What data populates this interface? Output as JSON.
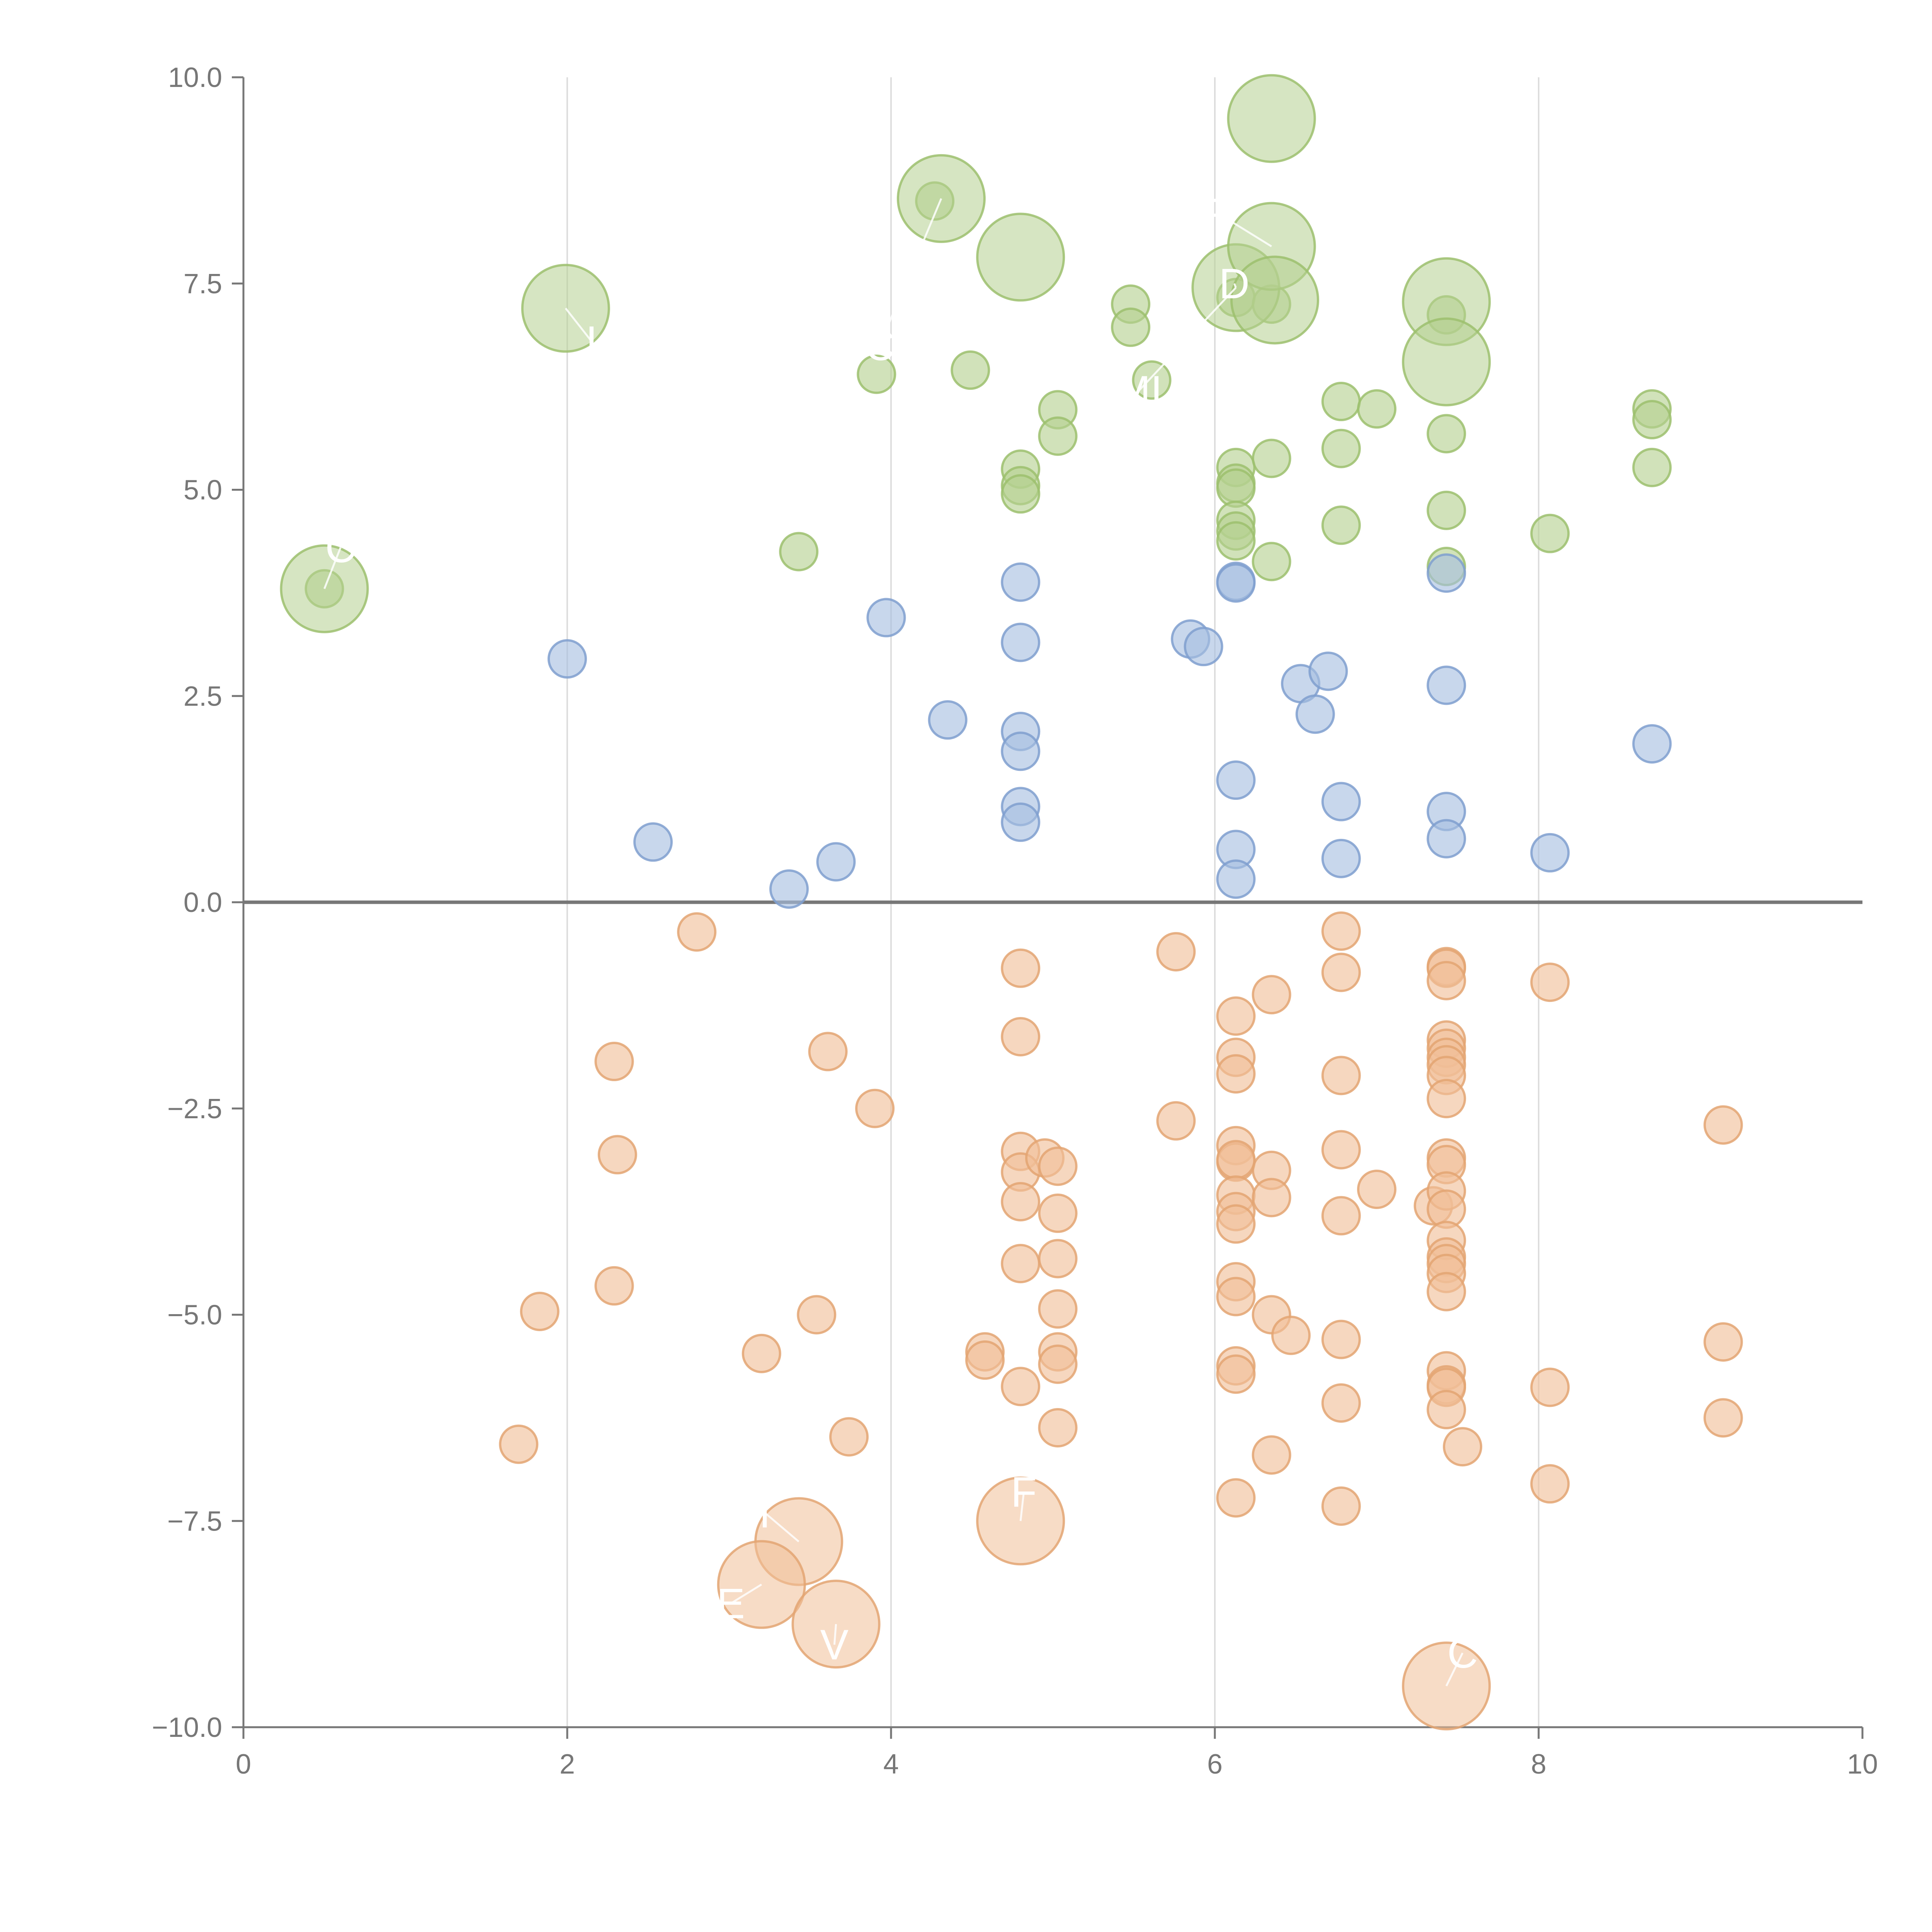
{
  "chart_data": {
    "type": "scatter",
    "title": "",
    "xlabel": "",
    "ylabel": "",
    "xlim": [
      0,
      10
    ],
    "ylim": [
      -10,
      10
    ],
    "x_ticks": [
      0,
      2,
      4,
      6,
      8,
      10
    ],
    "x_tick_labels": [
      "0",
      "2",
      "4",
      "6",
      "8",
      "10"
    ],
    "y_ticks": [
      10,
      7.5,
      5,
      2.5,
      0,
      -2.5,
      -5,
      -7.5,
      -10
    ],
    "y_tick_labels": [
      "10.0",
      "7.5",
      "5.0",
      "2.5",
      "0.0",
      "−2.5",
      "−5.0",
      "−7.5",
      "−10.0"
    ],
    "vertical_grid": true,
    "horizontal_grid": false,
    "zero_line": true,
    "legend": "none",
    "series": [
      {
        "fill": "#b5d08f",
        "stroke": "#9cbf6d",
        "points": [
          [
            0.5,
            3.8
          ],
          [
            3.43,
            4.25
          ],
          [
            3.91,
            6.4
          ],
          [
            4.49,
            6.45
          ],
          [
            4.27,
            8.5
          ],
          [
            4.8,
            5.25
          ],
          [
            4.8,
            5.05
          ],
          [
            4.8,
            4.95
          ],
          [
            5.03,
            5.97
          ],
          [
            5.03,
            5.65
          ],
          [
            5.48,
            7.25
          ],
          [
            5.48,
            6.97
          ],
          [
            5.61,
            6.33
          ],
          [
            6.13,
            7.33
          ],
          [
            6.13,
            5.27
          ],
          [
            6.13,
            5.08
          ],
          [
            6.13,
            5.02
          ],
          [
            6.13,
            4.63
          ],
          [
            6.13,
            4.5
          ],
          [
            6.13,
            4.38
          ],
          [
            6.35,
            5.38
          ],
          [
            6.35,
            4.13
          ],
          [
            6.35,
            7.25
          ],
          [
            6.78,
            6.07
          ],
          [
            6.78,
            5.5
          ],
          [
            6.78,
            4.57
          ],
          [
            7.0,
            5.98
          ],
          [
            7.43,
            7.12
          ],
          [
            7.43,
            5.68
          ],
          [
            7.43,
            4.75
          ],
          [
            7.43,
            4.07
          ],
          [
            8.07,
            4.47
          ],
          [
            8.7,
            5.98
          ],
          [
            8.7,
            5.85
          ],
          [
            8.7,
            5.27
          ]
        ],
        "big_points": [
          [
            0.5,
            3.8
          ],
          [
            1.99,
            7.2
          ],
          [
            4.31,
            8.53
          ],
          [
            4.8,
            7.82
          ],
          [
            6.35,
            9.5
          ],
          [
            6.13,
            7.45
          ],
          [
            6.35,
            7.95
          ],
          [
            6.37,
            7.3
          ],
          [
            7.43,
            7.28
          ],
          [
            7.43,
            6.55
          ]
        ],
        "labels": [
          {
            "text": "C",
            "x": 0.6,
            "y": 4.3
          },
          {
            "text": "I",
            "x": 2.15,
            "y": 6.8
          },
          {
            "text": "C",
            "x": 3.93,
            "y": 6.75
          },
          {
            "text": "MI",
            "x": 5.53,
            "y": 6.2
          },
          {
            "text": "P",
            "x": 6.02,
            "y": 8.35
          },
          {
            "text": "D",
            "x": 6.12,
            "y": 7.5
          }
        ]
      },
      {
        "fill": "#a7bfe1",
        "stroke": "#7f9fcf",
        "points": [
          [
            2.0,
            2.95
          ],
          [
            2.53,
            0.73
          ],
          [
            3.37,
            0.16
          ],
          [
            3.66,
            0.49
          ],
          [
            3.97,
            3.45
          ],
          [
            4.35,
            2.21
          ],
          [
            4.8,
            3.88
          ],
          [
            4.8,
            3.15
          ],
          [
            4.8,
            2.07
          ],
          [
            4.8,
            1.83
          ],
          [
            4.8,
            1.16
          ],
          [
            4.8,
            0.97
          ],
          [
            5.85,
            3.19
          ],
          [
            5.93,
            3.1
          ],
          [
            6.13,
            3.89
          ],
          [
            6.13,
            3.87
          ],
          [
            6.13,
            1.48
          ],
          [
            6.13,
            0.64
          ],
          [
            6.13,
            0.28
          ],
          [
            6.53,
            2.65
          ],
          [
            6.62,
            2.28
          ],
          [
            6.7,
            2.8
          ],
          [
            6.78,
            1.22
          ],
          [
            6.78,
            0.53
          ],
          [
            7.43,
            3.99
          ],
          [
            7.43,
            2.63
          ],
          [
            7.43,
            1.1
          ],
          [
            7.43,
            0.77
          ],
          [
            8.07,
            0.6
          ],
          [
            8.7,
            1.92
          ]
        ],
        "big_points": [],
        "labels": []
      },
      {
        "fill": "#f1bf98",
        "stroke": "#e3a572",
        "points": [
          [
            1.7,
            -6.57
          ],
          [
            1.83,
            -4.96
          ],
          [
            2.29,
            -1.93
          ],
          [
            2.31,
            -3.06
          ],
          [
            2.29,
            -4.65
          ],
          [
            2.8,
            -0.36
          ],
          [
            3.2,
            -5.47
          ],
          [
            3.54,
            -5.0
          ],
          [
            3.61,
            -1.81
          ],
          [
            3.74,
            -6.48
          ],
          [
            3.9,
            -2.5
          ],
          [
            4.58,
            -5.45
          ],
          [
            4.58,
            -5.55
          ],
          [
            4.8,
            -0.8
          ],
          [
            4.8,
            -1.63
          ],
          [
            4.8,
            -3.02
          ],
          [
            4.8,
            -3.27
          ],
          [
            4.8,
            -3.63
          ],
          [
            4.8,
            -4.38
          ],
          [
            4.8,
            -5.87
          ],
          [
            4.95,
            -3.1
          ],
          [
            5.03,
            -3.2
          ],
          [
            5.03,
            -3.77
          ],
          [
            5.03,
            -4.32
          ],
          [
            5.03,
            -4.93
          ],
          [
            5.03,
            -5.45
          ],
          [
            5.03,
            -5.6
          ],
          [
            5.03,
            -6.37
          ],
          [
            5.76,
            -0.6
          ],
          [
            5.76,
            -2.65
          ],
          [
            6.13,
            -1.38
          ],
          [
            6.13,
            -1.88
          ],
          [
            6.13,
            -2.08
          ],
          [
            6.13,
            -2.95
          ],
          [
            6.13,
            -3.15
          ],
          [
            6.13,
            -3.12
          ],
          [
            6.13,
            -3.55
          ],
          [
            6.13,
            -3.75
          ],
          [
            6.13,
            -3.9
          ],
          [
            6.13,
            -4.6
          ],
          [
            6.13,
            -4.78
          ],
          [
            6.13,
            -5.62
          ],
          [
            6.13,
            -5.72
          ],
          [
            6.13,
            -7.22
          ],
          [
            6.35,
            -1.12
          ],
          [
            6.35,
            -3.25
          ],
          [
            6.35,
            -3.58
          ],
          [
            6.35,
            -5.0
          ],
          [
            6.35,
            -6.7
          ],
          [
            6.47,
            -5.25
          ],
          [
            6.78,
            -0.35
          ],
          [
            6.78,
            -0.85
          ],
          [
            6.78,
            -2.1
          ],
          [
            6.78,
            -3.0
          ],
          [
            6.78,
            -3.8
          ],
          [
            6.78,
            -5.3
          ],
          [
            6.78,
            -6.07
          ],
          [
            6.78,
            -7.32
          ],
          [
            7.0,
            -3.48
          ],
          [
            7.35,
            -3.68
          ],
          [
            7.43,
            -0.78
          ],
          [
            7.43,
            -0.8
          ],
          [
            7.43,
            -0.95
          ],
          [
            7.43,
            -1.67
          ],
          [
            7.43,
            -1.77
          ],
          [
            7.43,
            -1.88
          ],
          [
            7.43,
            -1.97
          ],
          [
            7.43,
            -2.1
          ],
          [
            7.43,
            -2.38
          ],
          [
            7.43,
            -3.1
          ],
          [
            7.43,
            -3.18
          ],
          [
            7.43,
            -3.5
          ],
          [
            7.43,
            -3.72
          ],
          [
            7.43,
            -4.1
          ],
          [
            7.43,
            -4.3
          ],
          [
            7.43,
            -4.38
          ],
          [
            7.43,
            -4.5
          ],
          [
            7.43,
            -4.72
          ],
          [
            7.43,
            -5.68
          ],
          [
            7.43,
            -5.85
          ],
          [
            7.43,
            -5.88
          ],
          [
            7.43,
            -6.15
          ],
          [
            7.53,
            -6.6
          ],
          [
            8.07,
            -0.97
          ],
          [
            8.07,
            -5.88
          ],
          [
            8.07,
            -7.05
          ],
          [
            9.14,
            -2.7
          ],
          [
            9.14,
            -5.33
          ],
          [
            9.14,
            -6.25
          ]
        ],
        "big_points": [
          [
            3.43,
            -7.75
          ],
          [
            3.2,
            -8.27
          ],
          [
            3.66,
            -8.75
          ],
          [
            4.8,
            -7.5
          ],
          [
            7.43,
            -9.5
          ]
        ],
        "labels": [
          {
            "text": "I",
            "x": 3.22,
            "y": -7.4
          },
          {
            "text": "E",
            "x": 3.01,
            "y": -8.5
          },
          {
            "text": "V",
            "x": 3.65,
            "y": -9.0
          },
          {
            "text": "F",
            "x": 4.82,
            "y": -7.15
          },
          {
            "text": "C",
            "x": 7.53,
            "y": -9.1
          }
        ]
      }
    ]
  }
}
